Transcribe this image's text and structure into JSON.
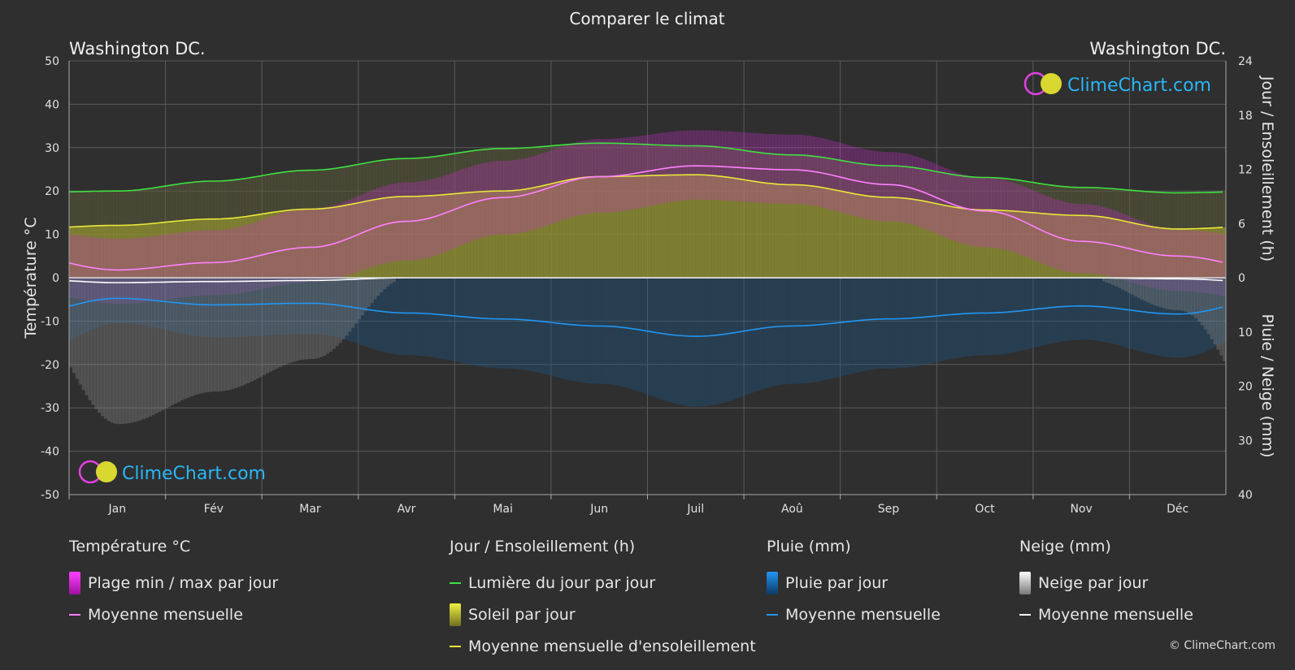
{
  "title": "Comparer le climat",
  "location_left": "Washington DC.",
  "location_right": "Washington DC.",
  "brand": "ClimeChart.com",
  "copyright": "© ClimeChart.com",
  "colors": {
    "background": "#2f2f2f",
    "temp_range": "#e020e0",
    "temp_mean": "#ff80ff",
    "daylight": "#40e040",
    "sunshine": "#c0c030",
    "sunshine_mean": "#e8e838",
    "rain": "#1e88e5",
    "rain_mean": "#2196f3",
    "snow": "#ffffff",
    "snow_mean": "#ffffff",
    "brand": "#29b6f6"
  },
  "chart_data": {
    "type": "line",
    "title": "Comparer le climat",
    "months": [
      "Jan",
      "Fév",
      "Mar",
      "Avr",
      "Mai",
      "Jun",
      "Juil",
      "Aoû",
      "Sep",
      "Oct",
      "Nov",
      "Déc"
    ],
    "left_axis": {
      "label": "Température °C",
      "range": [
        -50,
        50
      ],
      "ticks": [
        50,
        40,
        30,
        20,
        10,
        0,
        -10,
        -20,
        -30,
        -40,
        -50
      ]
    },
    "right_axis_top": {
      "label": "Jour / Ensoleillement (h)",
      "range": [
        0,
        24
      ],
      "ticks": [
        24,
        18,
        12,
        6,
        0
      ]
    },
    "right_axis_bottom": {
      "label": "Pluie / Neige (mm)",
      "range": [
        0,
        40
      ],
      "ticks": [
        0,
        10,
        20,
        30,
        40
      ]
    },
    "grid": true,
    "series": [
      {
        "name": "Lumière du jour par jour",
        "axis": "hours",
        "values": [
          9.6,
          10.7,
          11.9,
          13.2,
          14.3,
          14.9,
          14.6,
          13.6,
          12.4,
          11.1,
          10.0,
          9.4
        ]
      },
      {
        "name": "Moyenne mensuelle d'ensoleillement",
        "axis": "hours",
        "values": [
          5.8,
          6.5,
          7.6,
          9.0,
          9.6,
          11.2,
          11.4,
          10.3,
          8.9,
          7.5,
          6.9,
          5.4
        ]
      },
      {
        "name": "Moyenne mensuelle",
        "group": "temperature",
        "axis": "temp",
        "values": [
          1.8,
          3.5,
          7.0,
          13.0,
          18.5,
          23.3,
          25.8,
          24.9,
          21.5,
          15.4,
          8.4,
          5.0
        ]
      },
      {
        "name": "Moyenne mensuelle",
        "group": "rain",
        "axis": "mm",
        "values": [
          3.8,
          5.0,
          4.7,
          6.5,
          7.6,
          8.9,
          10.8,
          8.9,
          7.6,
          6.5,
          5.2,
          6.7
        ]
      },
      {
        "name": "Moyenne mensuelle",
        "group": "snow",
        "axis": "mm",
        "values": [
          0.9,
          0.7,
          0.5,
          0.0,
          0.0,
          0.0,
          0.0,
          0.0,
          0.0,
          0.0,
          0.0,
          0.2
        ]
      }
    ],
    "temp_daily_max_monthly": [
      6,
      8,
      13,
      19,
      24,
      29,
      31,
      30,
      26,
      20,
      14,
      8
    ],
    "temp_daily_min_monthly": [
      -3,
      -1,
      2,
      7,
      13,
      18,
      21,
      20,
      16,
      10,
      4,
      0
    ]
  },
  "legend": {
    "temperature": {
      "title": "Température °C",
      "items": [
        "Plage min / max par jour",
        "Moyenne mensuelle"
      ]
    },
    "sun": {
      "title": "Jour / Ensoleillement (h)",
      "items": [
        "Lumière du jour par jour",
        "Soleil par jour",
        "Moyenne mensuelle d'ensoleillement"
      ]
    },
    "rain": {
      "title": "Pluie (mm)",
      "items": [
        "Pluie par jour",
        "Moyenne mensuelle"
      ]
    },
    "snow": {
      "title": "Neige (mm)",
      "items": [
        "Neige par jour",
        "Moyenne mensuelle"
      ]
    }
  }
}
